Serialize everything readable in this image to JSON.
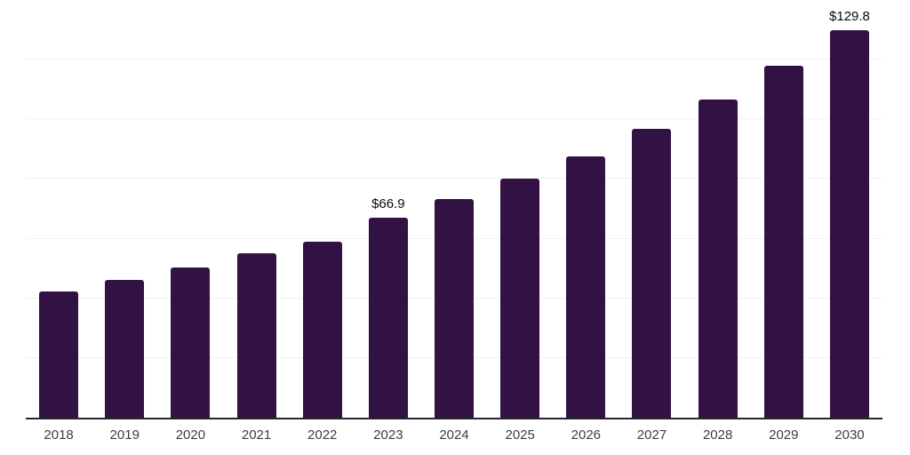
{
  "chart_data": {
    "type": "bar",
    "title": "",
    "xlabel": "",
    "ylabel": "",
    "categories": [
      "2018",
      "2019",
      "2020",
      "2021",
      "2022",
      "2023",
      "2024",
      "2025",
      "2026",
      "2027",
      "2028",
      "2029",
      "2030"
    ],
    "values": [
      42.4,
      46.3,
      50.4,
      55.2,
      59.0,
      66.9,
      73.2,
      80.0,
      87.7,
      96.7,
      106.5,
      117.9,
      129.8
    ],
    "data_labels": {
      "2023": "$66.9",
      "2030": "$129.8"
    },
    "ylim": [
      0,
      140
    ],
    "grid": {
      "visible": true,
      "step": 20,
      "orientation": "horizontal"
    },
    "legend": {
      "visible": false
    },
    "y_axis_tick_labels_visible": false,
    "colors": {
      "bar": "#321245",
      "gridline": "#f1f1f3",
      "axis_line": "#262626",
      "tick_label": "#3d3d3d",
      "data_label": "#0a0a0a",
      "background": "#ffffff"
    }
  }
}
